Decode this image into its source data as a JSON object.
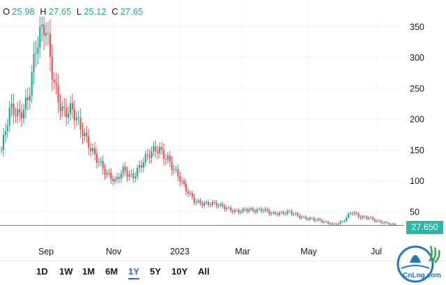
{
  "ohlc": {
    "o_label": "O",
    "o": "25.98",
    "h_label": "H",
    "h": "27.65",
    "l_label": "L",
    "l": "25.12",
    "c_label": "C",
    "c": "27.65"
  },
  "colors": {
    "up": "#26a69a",
    "down": "#ef5350",
    "last_price_line": "#26a69a",
    "active_range": "#2962ff"
  },
  "last_price": "27.650",
  "ranges": [
    "1D",
    "1W",
    "1M",
    "6M",
    "1Y",
    "5Y",
    "10Y",
    "All"
  ],
  "active_range": "1Y",
  "logo_text": "CnLng.com",
  "chart_data": {
    "type": "candlestick",
    "title": "",
    "xlabel": "",
    "ylabel": "",
    "ylim": [
      0,
      390
    ],
    "y_ticks": [
      50,
      100,
      150,
      200,
      250,
      300,
      350
    ],
    "x_ticks": [
      "Sep",
      "Nov",
      "2023",
      "Mar",
      "May",
      "Jul"
    ],
    "grid": "horizontal",
    "last_price": 27.65,
    "series_approx_closes": [
      {
        "period": "Jul",
        "value": 150
      },
      {
        "period": "Jul",
        "value": 210
      },
      {
        "period": "Aug",
        "value": 205
      },
      {
        "period": "Aug",
        "value": 240
      },
      {
        "period": "Aug",
        "value": 320
      },
      {
        "period": "Sep",
        "value": 340
      },
      {
        "period": "Sep",
        "value": 260
      },
      {
        "period": "Sep",
        "value": 220
      },
      {
        "period": "Sep",
        "value": 215
      },
      {
        "period": "Oct",
        "value": 180
      },
      {
        "period": "Oct",
        "value": 160
      },
      {
        "period": "Oct",
        "value": 140
      },
      {
        "period": "Oct",
        "value": 110
      },
      {
        "period": "Nov",
        "value": 95
      },
      {
        "period": "Nov",
        "value": 120
      },
      {
        "period": "Nov",
        "value": 110
      },
      {
        "period": "Nov",
        "value": 125
      },
      {
        "period": "Dec",
        "value": 140
      },
      {
        "period": "Dec",
        "value": 155
      },
      {
        "period": "Dec",
        "value": 140
      },
      {
        "period": "Dec",
        "value": 110
      },
      {
        "period": "Jan",
        "value": 85
      },
      {
        "period": "Jan",
        "value": 70
      },
      {
        "period": "Jan",
        "value": 65
      },
      {
        "period": "Jan",
        "value": 62
      },
      {
        "period": "Feb",
        "value": 58
      },
      {
        "period": "Feb",
        "value": 55
      },
      {
        "period": "Feb",
        "value": 52
      },
      {
        "period": "Mar",
        "value": 52
      },
      {
        "period": "Mar",
        "value": 50
      },
      {
        "period": "Mar",
        "value": 55
      },
      {
        "period": "Apr",
        "value": 48
      },
      {
        "period": "Apr",
        "value": 46
      },
      {
        "period": "Apr",
        "value": 48
      },
      {
        "period": "May",
        "value": 44
      },
      {
        "period": "May",
        "value": 40
      },
      {
        "period": "May",
        "value": 36
      },
      {
        "period": "Jun",
        "value": 32
      },
      {
        "period": "Jun",
        "value": 30
      },
      {
        "period": "Jun",
        "value": 35
      },
      {
        "period": "Jun",
        "value": 48
      },
      {
        "period": "Jun",
        "value": 40
      },
      {
        "period": "Jul",
        "value": 42
      },
      {
        "period": "Jul",
        "value": 35
      },
      {
        "period": "Jul",
        "value": 30
      },
      {
        "period": "Jul",
        "value": 27.65
      }
    ]
  }
}
